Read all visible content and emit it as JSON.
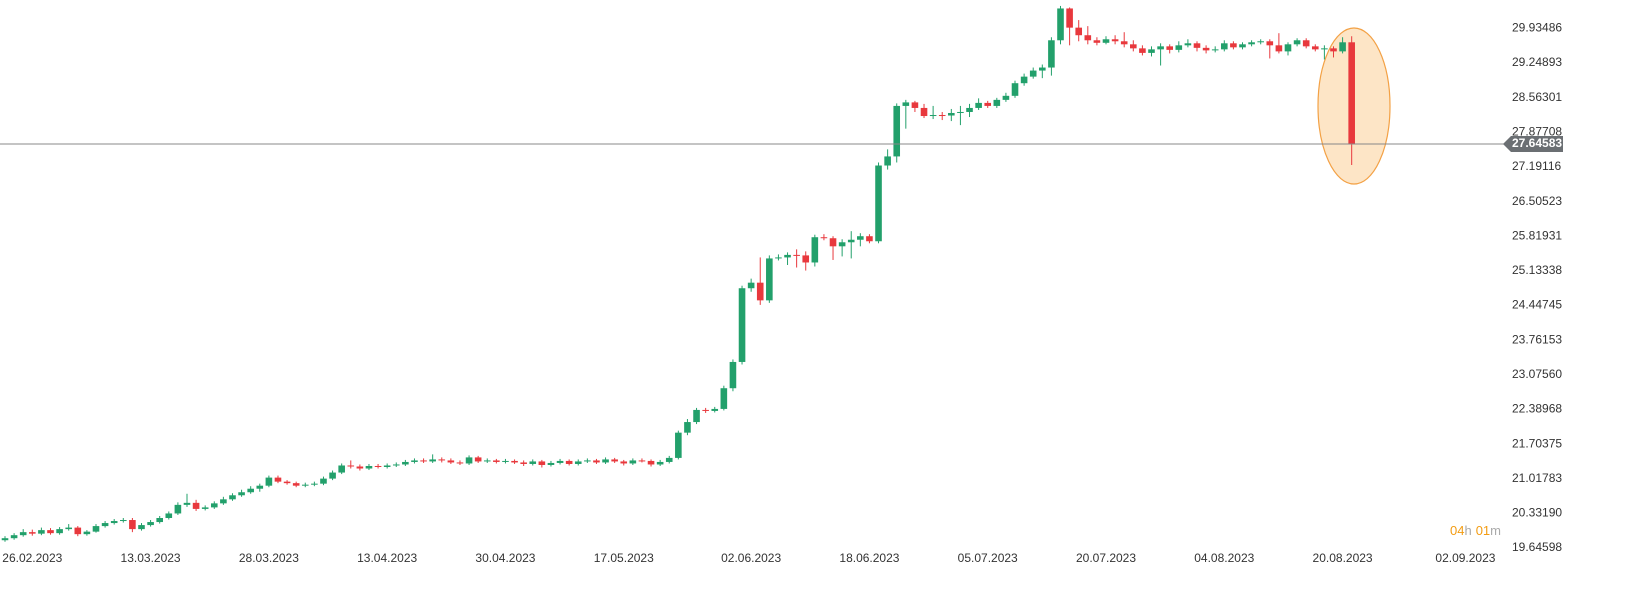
{
  "chart_data": {
    "type": "candlestick",
    "open": [
      19.8,
      19.84,
      19.9,
      19.96,
      19.93,
      20.0,
      19.94,
      20.02,
      20.05,
      19.92,
      19.97,
      20.08,
      20.14,
      20.18,
      20.2,
      20.02,
      20.1,
      20.16,
      20.24,
      20.33,
      20.5,
      20.54,
      20.42,
      20.45,
      20.53,
      20.61,
      20.69,
      20.75,
      20.82,
      20.88,
      21.04,
      20.96,
      20.93,
      20.88,
      20.9,
      20.92,
      21.02,
      21.14,
      21.28,
      21.26,
      21.22,
      21.27,
      21.25,
      21.28,
      21.3,
      21.35,
      21.38,
      21.36,
      21.4,
      21.38,
      21.34,
      21.32,
      21.44,
      21.36,
      21.38,
      21.35,
      21.37,
      21.34,
      21.31,
      21.36,
      21.29,
      21.33,
      21.37,
      21.31,
      21.36,
      21.38,
      21.34,
      21.4,
      21.36,
      21.32,
      21.38,
      21.37,
      21.3,
      21.35,
      21.43,
      21.93,
      22.14,
      22.38,
      22.36,
      22.4,
      22.81,
      23.33,
      24.79,
      24.9,
      24.55,
      25.38,
      25.4,
      25.45,
      25.44,
      25.3,
      25.8,
      25.78,
      25.62,
      25.7,
      25.75,
      25.82,
      25.72,
      27.22,
      27.4,
      28.4,
      28.47,
      28.36,
      28.2,
      28.22,
      28.21,
      28.26,
      28.28,
      28.36,
      28.46,
      28.4,
      28.52,
      28.6,
      28.85,
      28.98,
      29.1,
      29.16,
      29.7,
      30.33,
      29.95,
      29.8,
      29.7,
      29.65,
      29.72,
      29.68,
      29.62,
      29.54,
      29.45,
      29.52,
      29.58,
      29.51,
      29.6,
      29.64,
      29.55,
      29.5,
      29.52,
      29.64,
      29.56,
      29.62,
      29.66,
      29.68,
      29.6,
      29.48,
      29.62,
      29.7,
      29.58,
      29.52,
      29.54,
      29.48,
      29.66
    ],
    "high": [
      19.88,
      19.94,
      20.02,
      20.01,
      20.05,
      20.04,
      20.06,
      20.12,
      20.08,
      20.0,
      20.12,
      20.18,
      20.22,
      20.24,
      20.24,
      20.14,
      20.2,
      20.28,
      20.37,
      20.55,
      20.72,
      20.6,
      20.49,
      20.57,
      20.66,
      20.73,
      20.8,
      20.87,
      20.92,
      21.08,
      21.08,
      20.99,
      20.96,
      20.94,
      20.96,
      21.06,
      21.18,
      21.32,
      21.38,
      21.3,
      21.31,
      21.31,
      21.32,
      21.34,
      21.39,
      21.42,
      21.42,
      21.5,
      21.44,
      21.42,
      21.38,
      21.48,
      21.47,
      21.42,
      21.41,
      21.41,
      21.4,
      21.38,
      21.4,
      21.39,
      21.37,
      21.41,
      21.4,
      21.4,
      21.42,
      21.41,
      21.44,
      21.43,
      21.39,
      21.42,
      21.42,
      21.4,
      21.39,
      21.47,
      21.97,
      22.2,
      22.42,
      22.42,
      22.44,
      22.86,
      23.38,
      24.84,
      24.98,
      25.4,
      25.44,
      25.46,
      25.5,
      25.56,
      25.52,
      25.85,
      25.86,
      25.82,
      25.76,
      25.92,
      25.88,
      25.86,
      27.28,
      27.54,
      28.45,
      28.52,
      28.5,
      28.44,
      28.4,
      28.28,
      28.34,
      28.4,
      28.44,
      28.55,
      28.5,
      28.56,
      28.66,
      28.9,
      29.04,
      29.16,
      29.22,
      29.76,
      30.38,
      30.35,
      30.1,
      29.98,
      29.76,
      29.78,
      29.8,
      29.86,
      29.7,
      29.6,
      29.58,
      29.64,
      29.62,
      29.68,
      29.72,
      29.68,
      29.6,
      29.58,
      29.7,
      29.68,
      29.66,
      29.7,
      29.72,
      29.72,
      29.84,
      29.66,
      29.74,
      29.74,
      29.62,
      29.6,
      29.58,
      29.76,
      29.78
    ],
    "low": [
      19.77,
      19.81,
      19.87,
      19.89,
      19.9,
      19.91,
      19.91,
      19.99,
      19.88,
      19.89,
      19.95,
      20.05,
      20.11,
      20.15,
      19.96,
      19.99,
      20.07,
      20.13,
      20.21,
      20.3,
      20.46,
      20.38,
      20.39,
      20.42,
      20.5,
      20.58,
      20.66,
      20.72,
      20.76,
      20.85,
      20.93,
      20.9,
      20.85,
      20.85,
      20.87,
      20.89,
      20.99,
      21.11,
      21.22,
      21.18,
      21.19,
      21.22,
      21.22,
      21.25,
      21.27,
      21.32,
      21.33,
      21.33,
      21.34,
      21.31,
      21.29,
      21.29,
      21.33,
      21.33,
      21.32,
      21.32,
      21.31,
      21.27,
      21.28,
      21.24,
      21.26,
      21.3,
      21.28,
      21.28,
      21.33,
      21.31,
      21.31,
      21.33,
      21.28,
      21.29,
      21.34,
      21.26,
      21.27,
      21.32,
      21.4,
      21.88,
      22.1,
      22.32,
      22.33,
      22.37,
      22.75,
      23.28,
      24.72,
      24.46,
      24.5,
      25.34,
      25.25,
      25.2,
      25.14,
      25.22,
      25.74,
      25.35,
      25.42,
      25.38,
      25.62,
      25.68,
      25.68,
      27.14,
      27.28,
      27.95,
      28.28,
      28.16,
      28.14,
      28.12,
      28.1,
      28.02,
      28.18,
      28.32,
      28.36,
      28.36,
      28.48,
      28.56,
      28.8,
      28.94,
      28.95,
      29.0,
      29.62,
      29.6,
      29.68,
      29.62,
      29.6,
      29.62,
      29.62,
      29.56,
      29.48,
      29.4,
      29.38,
      29.2,
      29.44,
      29.46,
      29.56,
      29.48,
      29.44,
      29.46,
      29.48,
      29.52,
      29.52,
      29.58,
      29.62,
      29.34,
      29.44,
      29.4,
      29.58,
      29.54,
      29.48,
      29.32,
      29.36,
      29.44,
      27.23
    ],
    "close": [
      19.84,
      19.9,
      19.96,
      19.93,
      20.0,
      19.94,
      20.02,
      20.05,
      19.92,
      19.97,
      20.08,
      20.14,
      20.18,
      20.2,
      20.02,
      20.1,
      20.16,
      20.24,
      20.33,
      20.5,
      20.54,
      20.42,
      20.45,
      20.53,
      20.61,
      20.69,
      20.75,
      20.82,
      20.88,
      21.04,
      20.96,
      20.93,
      20.88,
      20.9,
      20.92,
      21.02,
      21.14,
      21.28,
      21.26,
      21.22,
      21.27,
      21.25,
      21.28,
      21.3,
      21.35,
      21.38,
      21.36,
      21.4,
      21.38,
      21.34,
      21.32,
      21.44,
      21.36,
      21.38,
      21.35,
      21.37,
      21.34,
      21.31,
      21.36,
      21.29,
      21.33,
      21.37,
      21.31,
      21.36,
      21.38,
      21.34,
      21.4,
      21.36,
      21.32,
      21.38,
      21.37,
      21.3,
      21.35,
      21.43,
      21.93,
      22.14,
      22.38,
      22.36,
      22.4,
      22.81,
      23.33,
      24.79,
      24.9,
      24.55,
      25.38,
      25.4,
      25.45,
      25.44,
      25.3,
      25.8,
      25.78,
      25.62,
      25.7,
      25.75,
      25.82,
      25.72,
      27.22,
      27.4,
      28.4,
      28.47,
      28.36,
      28.2,
      28.22,
      28.21,
      28.26,
      28.28,
      28.36,
      28.46,
      28.4,
      28.52,
      28.6,
      28.85,
      28.98,
      29.1,
      29.16,
      29.7,
      30.33,
      29.95,
      29.8,
      29.7,
      29.65,
      29.72,
      29.68,
      29.62,
      29.54,
      29.45,
      29.52,
      29.58,
      29.51,
      29.6,
      29.64,
      29.55,
      29.5,
      29.52,
      29.64,
      29.56,
      29.62,
      29.66,
      29.68,
      29.6,
      29.48,
      29.62,
      29.7,
      29.58,
      29.52,
      29.54,
      29.48,
      29.66,
      27.64583
    ],
    "up_color": "#22a06b",
    "down_color": "#e8383d",
    "xlim": [
      -0.55,
      164.3
    ],
    "xticks": [
      {
        "value": 3,
        "label": "26.02.2023"
      },
      {
        "value": 16,
        "label": "13.03.2023"
      },
      {
        "value": 29,
        "label": "28.03.2023"
      },
      {
        "value": 42,
        "label": "13.04.2023"
      },
      {
        "value": 55,
        "label": "30.04.2023"
      },
      {
        "value": 68,
        "label": "17.05.2023"
      },
      {
        "value": 82,
        "label": "02.06.2023"
      },
      {
        "value": 95,
        "label": "18.06.2023"
      },
      {
        "value": 108,
        "label": "05.07.2023"
      },
      {
        "value": 121,
        "label": "20.07.2023"
      },
      {
        "value": 134,
        "label": "04.08.2023"
      },
      {
        "value": 147,
        "label": "20.08.2023"
      },
      {
        "value": 160.5,
        "label": "02.09.2023"
      }
    ],
    "ylim": [
      19.64598,
      30.4975
    ],
    "yticks": [
      19.64598,
      {
        "value": 20.3319,
        "label": "20.33190"
      },
      21.01783,
      21.70375,
      22.38968,
      {
        "value": 23.0756,
        "label": "23.07560"
      },
      23.76153,
      24.44745,
      25.13338,
      25.81931,
      26.50523,
      27.19116,
      27.87708,
      28.56301,
      29.24893,
      29.93486
    ],
    "countdown": [
      "04",
      "h",
      "01",
      "m"
    ]
  }
}
